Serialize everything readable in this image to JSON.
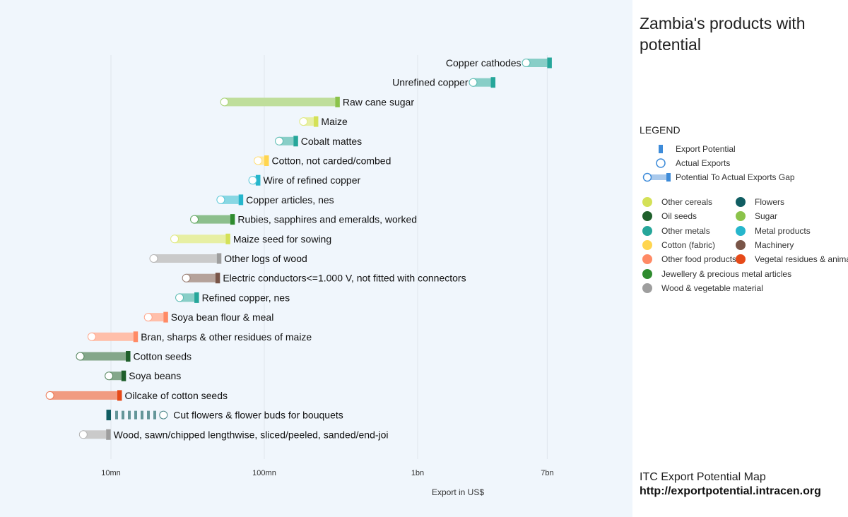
{
  "panel": {
    "title": "Zambia's products with potential",
    "legend_heading": "LEGEND",
    "key": {
      "potential": "Export Potential",
      "actual": "Actual Exports",
      "gap": "Potential To Actual Exports Gap"
    },
    "source_title": "ITC Export Potential Map",
    "source_url": "http://exportpotential.intracen.org"
  },
  "categories": [
    {
      "name": "Other cereals",
      "color": "#d4e157"
    },
    {
      "name": "Flowers",
      "color": "#105d62"
    },
    {
      "name": "Oil seeds",
      "color": "#1f5f2b"
    },
    {
      "name": "Sugar",
      "color": "#8bc34a"
    },
    {
      "name": "Other metals",
      "color": "#26a69a"
    },
    {
      "name": "Metal products",
      "color": "#26b6cc"
    },
    {
      "name": "Cotton (fabric)",
      "color": "#ffd54f"
    },
    {
      "name": "Machinery",
      "color": "#795548"
    },
    {
      "name": "Other food products",
      "color": "#ff8a65"
    },
    {
      "name": "Vegetal residues & animal feed",
      "color": "#e64a19"
    },
    {
      "name": "Jewellery & precious metal articles",
      "color": "#2e8b2e"
    },
    {
      "name": "Wood & vegetable material",
      "color": "#9e9e9e"
    }
  ],
  "chart_data": {
    "type": "dumbbell",
    "xlabel": "Export in US$",
    "x_scale": "log",
    "xlim": [
      3000000,
      20000000000
    ],
    "ticks": [
      {
        "value": 10000000,
        "label": "10mn"
      },
      {
        "value": 100000000,
        "label": "100mn"
      },
      {
        "value": 1000000000,
        "label": "1bn"
      },
      {
        "value": 7000000000,
        "label": "7bn"
      }
    ],
    "series": [
      {
        "product": "Copper cathodes",
        "category": "Other metals",
        "actual": 5100000000,
        "potential": 7000000000
      },
      {
        "product": "Unrefined copper",
        "category": "Other metals",
        "actual": 2300000000,
        "potential": 3000000000
      },
      {
        "product": "Raw cane sugar",
        "category": "Sugar",
        "actual": 55000000,
        "potential": 290000000
      },
      {
        "product": "Maize",
        "category": "Other cereals",
        "actual": 180000000,
        "potential": 210000000
      },
      {
        "product": "Cobalt mattes",
        "category": "Other metals",
        "actual": 125000000,
        "potential": 155000000
      },
      {
        "product": "Cotton, not carded/combed",
        "category": "Cotton (fabric)",
        "actual": 91000000,
        "potential": 100000000
      },
      {
        "product": "Wire of refined copper",
        "category": "Metal products",
        "actual": 84000000,
        "potential": 88000000
      },
      {
        "product": "Copper articles, nes",
        "category": "Metal products",
        "actual": 52000000,
        "potential": 68000000
      },
      {
        "product": "Rubies, sapphires and emeralds, worked",
        "category": "Jewellery & precious metal articles",
        "actual": 35000000,
        "potential": 60000000
      },
      {
        "product": "Maize seed for sowing",
        "category": "Other cereals",
        "actual": 26000000,
        "potential": 56000000
      },
      {
        "product": "Other logs of wood",
        "category": "Wood & vegetable material",
        "actual": 19000000,
        "potential": 49000000
      },
      {
        "product": "Electric conductors<=1.000 V, not fitted with connectors",
        "category": "Machinery",
        "actual": 31000000,
        "potential": 48000000
      },
      {
        "product": "Refined copper, nes",
        "category": "Other metals",
        "actual": 28000000,
        "potential": 35000000
      },
      {
        "product": "Soya bean flour & meal",
        "category": "Other food products",
        "actual": 17500000,
        "potential": 22000000
      },
      {
        "product": "Bran, sharps & other residues of maize",
        "category": "Other food products",
        "actual": 7500000,
        "potential": 14000000
      },
      {
        "product": "Cotton seeds",
        "category": "Oil seeds",
        "actual": 6300000,
        "potential": 12500000
      },
      {
        "product": "Soya beans",
        "category": "Oil seeds",
        "actual": 9700000,
        "potential": 11700000
      },
      {
        "product": "Oilcake of cotton seeds",
        "category": "Vegetal residues & animal feed",
        "actual": 4000000,
        "potential": 11000000
      },
      {
        "product": "Cut flowers & flower buds for bouquets",
        "category": "Flowers",
        "actual": 22000000,
        "potential": 10000000
      },
      {
        "product": "Wood, sawn/chipped lengthwise, sliced/peeled, sanded/end-joi",
        "category": "Wood & vegetable material",
        "actual": 6600000,
        "potential": 9300000
      }
    ]
  }
}
